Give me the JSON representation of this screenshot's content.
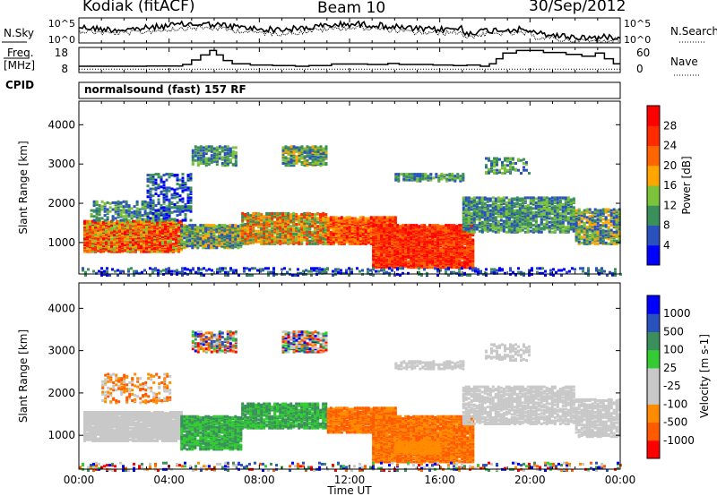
{
  "header": {
    "station": "Kodiak (fitACF)",
    "beam": "Beam 10",
    "date": "30/Sep/2012"
  },
  "side_labels": {
    "nsky": "N.Sky",
    "freq": "Freq.",
    "freq_unit": "[MHz]",
    "cpid": "CPID",
    "nsearch": "N.Search",
    "nave": "Nave"
  },
  "cpid_text": "normalsound (fast) 157 RF",
  "colors": {
    "power_scale": [
      "#0000ff",
      "#2a52be",
      "#3a8f5a",
      "#7cc23a",
      "#ffa500",
      "#ff6600",
      "#ff2a00",
      "#ff0000"
    ],
    "velocity_scale": [
      "#ff0000",
      "#ff5a00",
      "#ff8c00",
      "#c8c8c8",
      "#c8c8c8",
      "#33cc33",
      "#3a8f5a",
      "#2a52be",
      "#0000ff"
    ]
  },
  "chart_data": [
    {
      "type": "line",
      "name_key": "noise",
      "left_ticks": [
        "10^5",
        "10^0"
      ],
      "right_ticks": [
        "10^5",
        "10^0"
      ],
      "x_range": [
        0,
        24
      ]
    },
    {
      "type": "line",
      "name_key": "freq_nave",
      "left_ticks": [
        "18",
        "8"
      ],
      "right_ticks": [
        "60",
        "0"
      ],
      "ylim_left": [
        8,
        18
      ],
      "ylim_right": [
        0,
        60
      ],
      "freq_steps": [
        [
          0,
          10.5
        ],
        [
          3.0,
          10.6
        ],
        [
          4.6,
          11.2
        ],
        [
          5.0,
          13.0
        ],
        [
          5.4,
          15.0
        ],
        [
          5.8,
          16.8
        ],
        [
          6.1,
          15.0
        ],
        [
          6.4,
          12.8
        ],
        [
          6.8,
          11.5
        ],
        [
          7.6,
          11.0
        ],
        [
          8.6,
          10.8
        ],
        [
          9.6,
          10.5
        ],
        [
          10.2,
          10.8
        ],
        [
          11.2,
          11.4
        ],
        [
          12.8,
          11.2
        ],
        [
          13.7,
          11.6
        ],
        [
          14.2,
          11.2
        ],
        [
          15.7,
          11.0
        ],
        [
          16.6,
          10.8
        ],
        [
          17.2,
          11.0
        ],
        [
          17.8,
          10.5
        ],
        [
          18.2,
          11.5
        ],
        [
          18.5,
          13.5
        ],
        [
          18.8,
          15.8
        ],
        [
          19.4,
          16.8
        ],
        [
          20.6,
          16.0
        ],
        [
          21.6,
          15.2
        ],
        [
          22.3,
          14.5
        ],
        [
          22.9,
          15.8
        ],
        [
          23.3,
          13.5
        ],
        [
          23.7,
          11.5
        ],
        [
          24,
          11.5
        ]
      ],
      "nave_level": 8
    },
    {
      "type": "heatmap",
      "name_key": "power",
      "ylabel": "Slant Range [km]",
      "y_ticks": [
        1000,
        2000,
        3000,
        4000
      ],
      "ylim": [
        200,
        4600
      ],
      "colorbar_label": "Power [dB]",
      "colorbar_ticks": [
        4,
        8,
        12,
        16,
        20,
        24,
        28
      ],
      "colorbar_range": [
        0,
        32
      ]
    },
    {
      "type": "heatmap",
      "name_key": "velocity",
      "ylabel": "Slant Range [km]",
      "y_ticks": [
        1000,
        2000,
        3000,
        4000
      ],
      "ylim": [
        200,
        4600
      ],
      "colorbar_label": "Velocity [m s-1]",
      "colorbar_ticks": [
        "1000",
        "500",
        "100",
        "25",
        "-25",
        "-100",
        "-500",
        "-1000"
      ],
      "xlabel": "Time UT",
      "x_ticks": [
        "00:00",
        "04:00",
        "08:00",
        "12:00",
        "16:00",
        "20:00",
        "00:00"
      ],
      "xlim": [
        0,
        24
      ]
    }
  ]
}
